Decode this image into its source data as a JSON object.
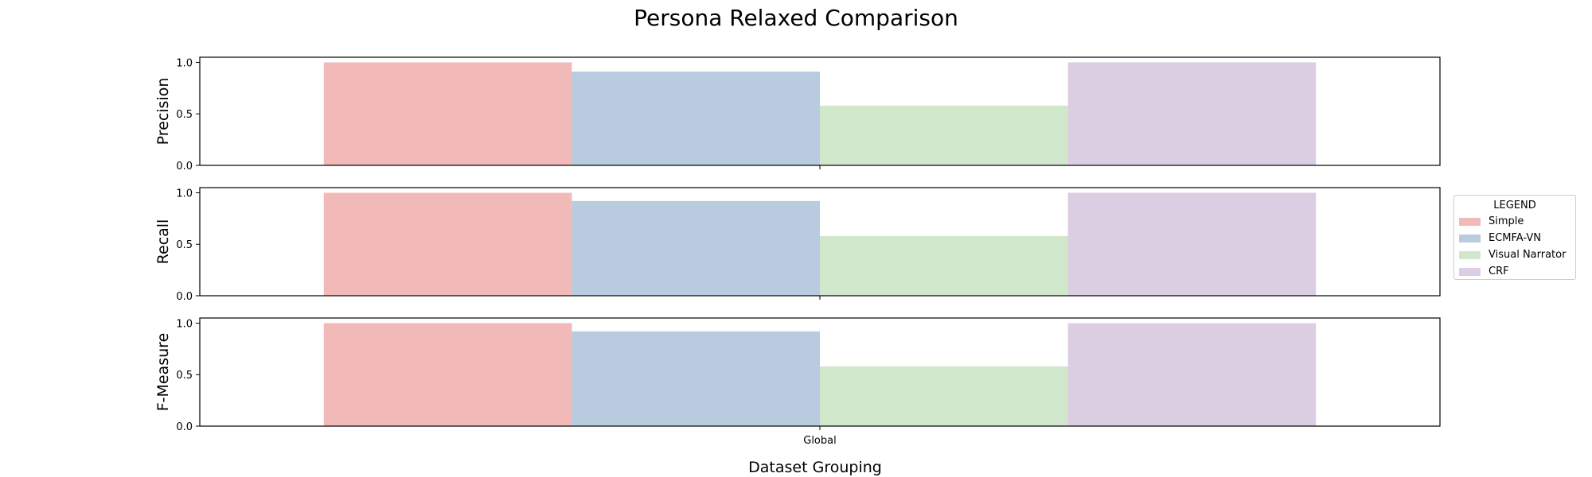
{
  "chart_data": {
    "type": "bar",
    "title": "Persona Relaxed Comparison",
    "xlabel": "Dataset Grouping",
    "categories": [
      "Global"
    ],
    "ylim": [
      0,
      1.05
    ],
    "yticks": [
      "0.0",
      "0.5",
      "1.0"
    ],
    "panels": [
      {
        "ylabel": "Precision",
        "values": [
          1.0,
          0.91,
          0.58,
          1.0
        ]
      },
      {
        "ylabel": "Recall",
        "values": [
          1.0,
          0.92,
          0.58,
          1.0
        ]
      },
      {
        "ylabel": "F-Measure",
        "values": [
          1.0,
          0.92,
          0.58,
          1.0
        ]
      }
    ],
    "series": [
      {
        "name": "Simple",
        "color": "#f1bab8"
      },
      {
        "name": "ECMFA-VN",
        "color": "#b8cbdf"
      },
      {
        "name": "Visual Narrator",
        "color": "#d0e7cb"
      },
      {
        "name": "CRF",
        "color": "#dbcde2"
      }
    ],
    "legend": {
      "title": "LEGEND",
      "placement": "right"
    },
    "grid": false
  }
}
